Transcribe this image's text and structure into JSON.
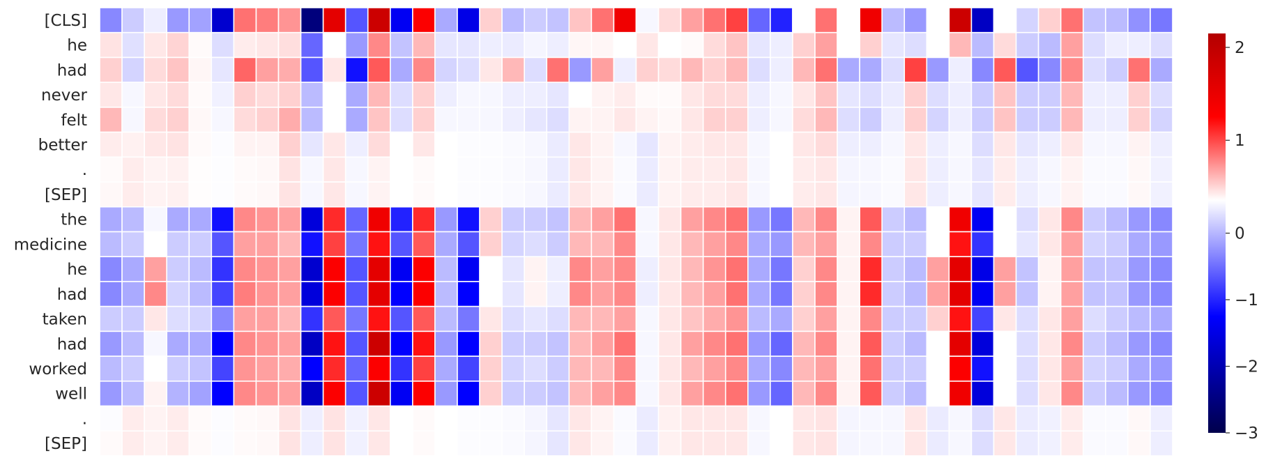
{
  "chart_data": {
    "type": "heatmap",
    "title": "",
    "xlabel": "",
    "ylabel": "",
    "rows": [
      "[CLS]",
      "he",
      "had",
      "never",
      "felt",
      "better",
      ".",
      "[SEP]",
      "the",
      "medicine",
      "he",
      "had",
      "taken",
      "had",
      "worked",
      "well",
      ".",
      "[SEP]"
    ],
    "n_columns": 48,
    "colormap": "seismic",
    "colorbar": {
      "min": -3,
      "max": 2.15,
      "ticks": [
        2,
        1,
        0,
        -1,
        -2,
        -3
      ],
      "tick_labels": [
        "2",
        "1",
        "0",
        "−1",
        "−2",
        "−3"
      ]
    },
    "values": [
      [
        -0.7,
        -0.3,
        -0.1,
        -0.6,
        -0.55,
        -1.9,
        0.6,
        0.55,
        0.45,
        -2.6,
        1.3,
        -1.0,
        1.5,
        -1.6,
        1.1,
        -0.5,
        -1.7,
        0.2,
        -0.4,
        -0.3,
        -0.35,
        0.25,
        0.6,
        1.2,
        -0.05,
        0.15,
        0.4,
        0.6,
        0.8,
        -0.9,
        -1.3,
        0.0,
        0.6,
        0.0,
        1.2,
        -0.4,
        -0.6,
        0.0,
        1.5,
        -2.0,
        0.0,
        -0.25,
        0.2,
        0.6,
        -0.35,
        -0.4,
        -0.65,
        -0.8
      ],
      [
        0.12,
        -0.18,
        0.1,
        0.18,
        0.02,
        -0.2,
        0.08,
        0.1,
        0.14,
        -0.9,
        0.0,
        -0.6,
        0.5,
        -0.35,
        0.3,
        -0.15,
        -0.15,
        -0.1,
        -0.12,
        -0.06,
        -0.1,
        0.04,
        0.04,
        0.0,
        0.1,
        0.0,
        0.02,
        0.15,
        0.25,
        -0.15,
        -0.1,
        0.2,
        0.4,
        0.0,
        0.2,
        -0.15,
        -0.2,
        0.0,
        0.3,
        -0.4,
        0.15,
        -0.3,
        -0.4,
        0.4,
        -0.2,
        -0.1,
        -0.1,
        -0.2
      ],
      [
        0.2,
        -0.25,
        0.15,
        0.25,
        0.04,
        -0.15,
        0.65,
        0.4,
        0.35,
        -1.0,
        0.1,
        -1.4,
        0.7,
        -0.5,
        0.5,
        -0.25,
        -0.2,
        0.1,
        0.3,
        -0.2,
        0.6,
        -0.6,
        0.4,
        -0.1,
        0.2,
        0.15,
        0.3,
        0.2,
        0.3,
        -0.2,
        -0.1,
        0.3,
        0.6,
        -0.5,
        -0.5,
        -0.2,
        0.8,
        -0.6,
        -0.1,
        -0.7,
        0.7,
        -1.0,
        -0.7,
        0.5,
        -0.2,
        -0.3,
        0.6,
        -0.5
      ],
      [
        0.1,
        -0.05,
        0.1,
        0.15,
        0.02,
        -0.08,
        0.2,
        0.15,
        0.2,
        -0.4,
        0.0,
        -0.5,
        0.3,
        -0.2,
        0.2,
        -0.1,
        -0.05,
        -0.05,
        -0.1,
        -0.1,
        -0.15,
        0.0,
        0.05,
        0.08,
        0.02,
        0.02,
        0.1,
        0.15,
        0.15,
        -0.1,
        -0.05,
        0.1,
        0.25,
        -0.15,
        -0.2,
        -0.12,
        0.2,
        -0.2,
        -0.1,
        -0.3,
        0.25,
        -0.3,
        -0.3,
        0.3,
        -0.1,
        -0.1,
        0.2,
        -0.2
      ],
      [
        0.3,
        -0.05,
        0.15,
        0.2,
        0.03,
        -0.05,
        0.15,
        0.2,
        0.35,
        -0.4,
        0.0,
        -0.5,
        0.25,
        -0.2,
        0.2,
        -0.05,
        -0.05,
        -0.05,
        -0.1,
        -0.15,
        -0.2,
        0.05,
        0.05,
        0.1,
        0.05,
        0.03,
        0.1,
        0.2,
        0.2,
        -0.1,
        -0.05,
        0.15,
        0.3,
        -0.2,
        -0.3,
        -0.1,
        0.2,
        -0.25,
        -0.1,
        -0.3,
        0.25,
        -0.3,
        -0.3,
        0.3,
        -0.1,
        -0.1,
        0.2,
        -0.25
      ],
      [
        0.08,
        0.06,
        0.1,
        0.12,
        0.02,
        -0.02,
        0.05,
        0.05,
        0.2,
        -0.15,
        0.1,
        -0.1,
        0.15,
        0.0,
        0.1,
        0.0,
        -0.02,
        -0.02,
        -0.03,
        -0.05,
        -0.12,
        0.1,
        0.05,
        -0.05,
        -0.15,
        0.05,
        0.08,
        0.1,
        0.1,
        -0.05,
        0.0,
        0.1,
        0.15,
        -0.1,
        -0.1,
        -0.05,
        0.1,
        -0.1,
        -0.05,
        -0.2,
        0.1,
        -0.15,
        -0.1,
        0.1,
        -0.05,
        -0.05,
        0.05,
        -0.1
      ],
      [
        0.02,
        0.08,
        0.05,
        0.06,
        0.01,
        -0.01,
        0.02,
        0.03,
        0.12,
        -0.05,
        0.1,
        -0.05,
        0.05,
        0.0,
        0.02,
        0.0,
        -0.02,
        -0.02,
        -0.03,
        -0.05,
        -0.12,
        0.1,
        0.05,
        -0.03,
        -0.12,
        0.05,
        0.08,
        0.08,
        0.1,
        -0.05,
        0.0,
        0.08,
        0.1,
        -0.06,
        -0.05,
        -0.03,
        0.1,
        -0.1,
        -0.05,
        -0.15,
        0.08,
        -0.1,
        -0.05,
        0.05,
        -0.03,
        -0.03,
        0.03,
        -0.08
      ],
      [
        0.03,
        0.08,
        0.05,
        0.06,
        0.01,
        -0.01,
        0.02,
        0.03,
        0.12,
        -0.05,
        0.1,
        -0.05,
        0.05,
        0.0,
        0.02,
        0.0,
        -0.02,
        -0.02,
        -0.03,
        -0.05,
        -0.12,
        0.1,
        0.05,
        -0.03,
        -0.12,
        0.05,
        0.08,
        0.08,
        0.1,
        -0.05,
        0.0,
        0.08,
        0.1,
        -0.06,
        -0.05,
        -0.03,
        0.1,
        -0.1,
        -0.05,
        -0.15,
        0.08,
        -0.1,
        -0.05,
        0.05,
        -0.03,
        -0.03,
        0.03,
        -0.08
      ],
      [
        -0.5,
        -0.4,
        -0.05,
        -0.5,
        -0.5,
        -1.4,
        0.5,
        0.45,
        0.4,
        -1.8,
        0.9,
        -0.9,
        1.2,
        -1.3,
        0.9,
        -0.6,
        -1.4,
        0.2,
        -0.3,
        -0.3,
        -0.35,
        0.3,
        0.4,
        0.6,
        -0.05,
        0.1,
        0.4,
        0.5,
        0.6,
        -0.6,
        -0.8,
        0.3,
        0.5,
        0.05,
        0.7,
        -0.3,
        -0.4,
        0.0,
        1.2,
        -1.6,
        0.0,
        -0.2,
        0.1,
        0.5,
        -0.3,
        -0.4,
        -0.6,
        -0.7
      ],
      [
        -0.4,
        -0.3,
        0.0,
        -0.3,
        -0.3,
        -1.0,
        0.4,
        0.4,
        0.3,
        -1.4,
        0.8,
        -0.8,
        1.0,
        -1.0,
        0.7,
        -0.5,
        -1.0,
        0.2,
        -0.25,
        -0.2,
        -0.3,
        0.3,
        0.3,
        0.5,
        -0.05,
        0.1,
        0.3,
        0.4,
        0.5,
        -0.5,
        -0.6,
        0.3,
        0.4,
        0.05,
        0.5,
        -0.3,
        -0.3,
        0.0,
        1.0,
        -1.2,
        0.0,
        -0.15,
        0.1,
        0.4,
        -0.25,
        -0.3,
        -0.5,
        -0.6
      ],
      [
        -0.7,
        -0.5,
        0.4,
        -0.3,
        -0.4,
        -1.2,
        0.5,
        0.45,
        0.4,
        -1.9,
        1.1,
        -1.0,
        1.3,
        -1.6,
        1.1,
        -0.4,
        -1.6,
        0.0,
        -0.15,
        0.05,
        -0.1,
        0.5,
        0.4,
        0.5,
        -0.1,
        0.1,
        0.3,
        0.45,
        0.6,
        -0.5,
        -0.8,
        0.2,
        0.5,
        0.05,
        0.9,
        -0.3,
        -0.4,
        0.4,
        1.3,
        -1.7,
        0.4,
        -0.35,
        0.05,
        0.4,
        -0.35,
        -0.35,
        -0.6,
        -0.7
      ],
      [
        -0.7,
        -0.5,
        0.5,
        -0.25,
        -0.4,
        -1.1,
        0.55,
        0.45,
        0.4,
        -1.8,
        1.1,
        -1.0,
        1.3,
        -1.5,
        1.1,
        -0.4,
        -1.5,
        0.0,
        -0.15,
        0.05,
        -0.1,
        0.5,
        0.4,
        0.5,
        -0.1,
        0.1,
        0.3,
        0.4,
        0.6,
        -0.5,
        -0.8,
        0.2,
        0.5,
        0.05,
        0.9,
        -0.3,
        -0.4,
        0.4,
        1.3,
        -1.6,
        0.4,
        -0.35,
        0.05,
        0.4,
        -0.35,
        -0.35,
        -0.6,
        -0.7
      ],
      [
        -0.3,
        -0.3,
        0.1,
        -0.2,
        -0.25,
        -0.7,
        0.4,
        0.4,
        0.3,
        -1.2,
        0.7,
        -0.8,
        1.0,
        -1.0,
        0.7,
        -0.4,
        -0.8,
        0.1,
        -0.2,
        -0.15,
        -0.2,
        0.3,
        0.3,
        0.4,
        -0.05,
        0.1,
        0.25,
        0.35,
        0.45,
        -0.4,
        -0.5,
        0.2,
        0.4,
        0.05,
        0.5,
        -0.3,
        -0.3,
        0.2,
        1.0,
        -1.1,
        0.1,
        -0.2,
        0.1,
        0.4,
        -0.2,
        -0.3,
        -0.4,
        -0.5
      ],
      [
        -0.6,
        -0.4,
        -0.05,
        -0.5,
        -0.5,
        -1.5,
        0.5,
        0.45,
        0.4,
        -2.0,
        1.0,
        -1.0,
        1.5,
        -1.5,
        1.0,
        -0.6,
        -1.5,
        0.2,
        -0.3,
        -0.3,
        -0.35,
        0.3,
        0.4,
        0.6,
        -0.05,
        0.1,
        0.4,
        0.5,
        0.6,
        -0.6,
        -0.9,
        0.3,
        0.5,
        0.05,
        0.7,
        -0.3,
        -0.4,
        0.0,
        1.3,
        -1.8,
        0.0,
        -0.2,
        0.1,
        0.5,
        -0.3,
        -0.4,
        -0.6,
        -0.7
      ],
      [
        -0.4,
        -0.3,
        0.0,
        -0.3,
        -0.35,
        -1.1,
        0.45,
        0.4,
        0.35,
        -1.5,
        0.9,
        -0.9,
        1.1,
        -1.2,
        0.8,
        -0.5,
        -1.1,
        0.2,
        -0.25,
        -0.2,
        -0.3,
        0.3,
        0.3,
        0.5,
        -0.05,
        0.1,
        0.3,
        0.4,
        0.5,
        -0.5,
        -0.7,
        0.3,
        0.4,
        0.05,
        0.6,
        -0.3,
        -0.3,
        0.0,
        1.1,
        -1.4,
        0.0,
        -0.2,
        0.1,
        0.4,
        -0.25,
        -0.3,
        -0.5,
        -0.6
      ],
      [
        -0.6,
        -0.4,
        0.05,
        -0.45,
        -0.55,
        -1.5,
        0.5,
        0.45,
        0.4,
        -2.0,
        1.1,
        -1.0,
        1.5,
        -1.6,
        1.1,
        -0.6,
        -1.5,
        0.2,
        -0.3,
        -0.3,
        -0.35,
        0.3,
        0.4,
        0.5,
        -0.05,
        0.1,
        0.4,
        0.5,
        0.6,
        -0.6,
        -0.9,
        0.3,
        0.5,
        0.05,
        0.7,
        -0.3,
        -0.4,
        0.0,
        1.2,
        -1.8,
        0.0,
        -0.2,
        0.1,
        0.5,
        -0.3,
        -0.4,
        -0.6,
        -0.7
      ],
      [
        -0.02,
        0.08,
        0.05,
        0.08,
        0.02,
        -0.02,
        0.02,
        0.03,
        0.12,
        -0.1,
        0.12,
        -0.08,
        0.1,
        0.0,
        0.02,
        0.0,
        -0.02,
        -0.02,
        -0.03,
        -0.06,
        -0.15,
        0.1,
        0.05,
        -0.03,
        -0.12,
        0.06,
        0.1,
        0.1,
        0.1,
        -0.05,
        0.0,
        0.1,
        0.12,
        -0.06,
        -0.05,
        -0.05,
        0.1,
        -0.12,
        -0.05,
        -0.2,
        0.1,
        -0.12,
        -0.08,
        0.08,
        -0.03,
        -0.03,
        0.03,
        -0.1
      ],
      [
        0.02,
        0.08,
        0.05,
        0.08,
        0.02,
        -0.02,
        0.02,
        0.03,
        0.12,
        -0.1,
        0.12,
        -0.08,
        0.1,
        0.0,
        0.02,
        0.0,
        -0.02,
        -0.02,
        -0.03,
        -0.06,
        -0.15,
        0.1,
        0.05,
        -0.03,
        -0.12,
        0.06,
        0.1,
        0.1,
        0.1,
        -0.05,
        0.0,
        0.1,
        0.12,
        -0.06,
        -0.05,
        -0.05,
        0.1,
        -0.12,
        -0.05,
        -0.2,
        0.1,
        -0.12,
        -0.08,
        0.08,
        -0.03,
        -0.03,
        0.03,
        -0.1
      ]
    ]
  }
}
